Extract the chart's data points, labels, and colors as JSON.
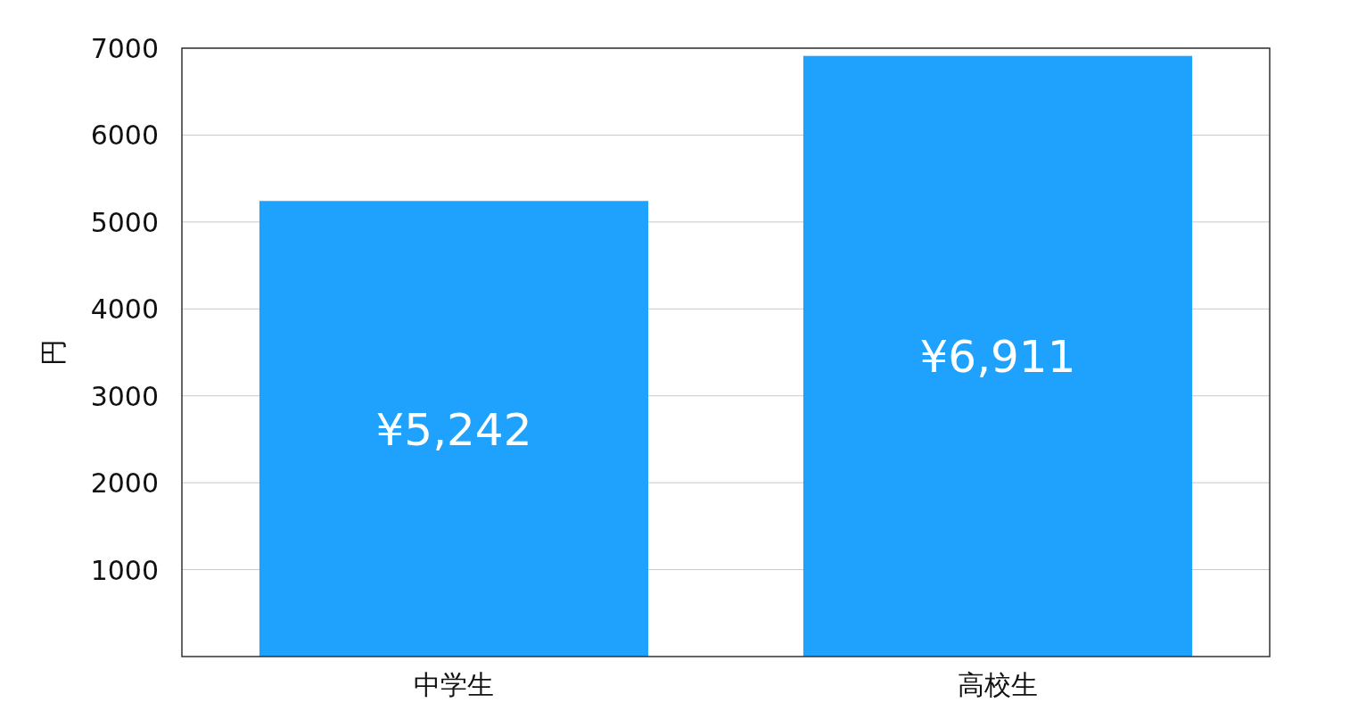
{
  "chart_data": {
    "type": "bar",
    "categories": [
      "中学生",
      "高校生"
    ],
    "values": [
      5242,
      6911
    ],
    "value_labels": [
      "¥5,242",
      "¥6,911"
    ],
    "color": "#1ea2fd",
    "ylabel": "円",
    "ylim": [
      0,
      7000
    ],
    "yticks": [
      1000,
      2000,
      3000,
      4000,
      5000,
      6000,
      7000
    ],
    "grid": "y"
  }
}
